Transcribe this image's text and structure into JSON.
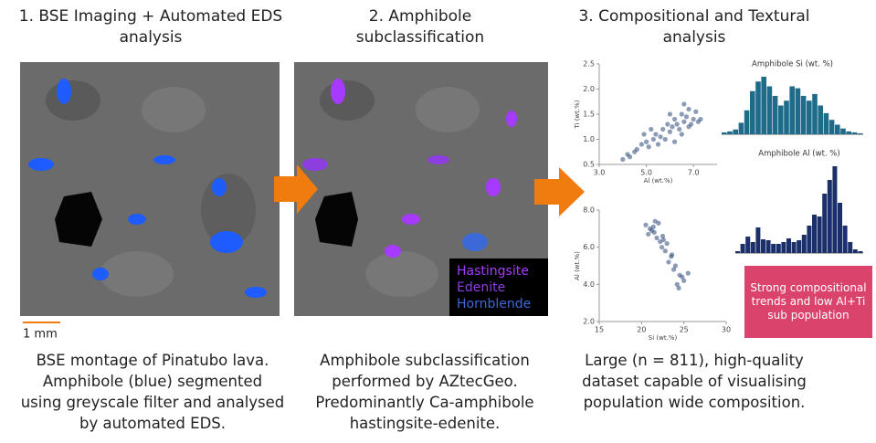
{
  "panels": [
    {
      "heading": "1. BSE Imaging + Automated EDS analysis",
      "caption": "BSE montage of Pinatubo lava. Amphibole (blue) segmented using greyscale filter and analysed by automated EDS."
    },
    {
      "heading": "2. Amphibole subclassification",
      "caption": "Amphibole subclassification performed by AZtecGeo. Predominantly Ca-amphibole hastingsite-edenite."
    },
    {
      "heading": "3. Compositional and Textural analysis",
      "caption": "Large (n = 811), high-quality dataset capable of visualising population wide composition."
    }
  ],
  "scale_bar": "1 mm",
  "legend": [
    {
      "name": "Hastingsite",
      "color": "#a63bff"
    },
    {
      "name": "Edenite",
      "color": "#8c3ee0"
    },
    {
      "name": "Hornblende",
      "color": "#3d68d8"
    }
  ],
  "callout": "Strong compositional trends and low Al+Ti sub population",
  "charts": [
    {
      "type": "scatter",
      "xlabel": "Al (wt.%)",
      "ylabel": "Ti (wt.%)",
      "color": "#2d4a7a",
      "x": [
        4.0,
        4.2,
        4.3,
        4.5,
        4.6,
        4.8,
        5.0,
        5.1,
        5.3,
        5.4,
        5.6,
        5.7,
        5.8,
        5.9,
        6.0,
        6.1,
        6.2,
        6.3,
        6.4,
        6.5,
        6.6,
        6.7,
        6.8,
        6.9,
        7.0,
        7.1,
        6.5,
        6.8,
        6.2,
        7.2,
        5.5,
        4.9,
        6.0,
        6.6,
        7.3,
        5.2
      ],
      "values": [
        0.6,
        0.7,
        0.65,
        0.75,
        0.8,
        0.9,
        0.95,
        0.85,
        1.0,
        1.1,
        1.05,
        1.2,
        1.0,
        1.3,
        1.15,
        1.25,
        1.4,
        1.3,
        1.2,
        1.5,
        1.35,
        1.45,
        1.6,
        1.3,
        1.4,
        1.55,
        1.1,
        1.25,
        0.95,
        1.35,
        0.9,
        1.1,
        1.5,
        1.7,
        1.4,
        1.2
      ],
      "xlim": [
        3,
        8
      ],
      "xticks": [
        {
          "value": 3,
          "label": "3.0"
        },
        {
          "value": 5,
          "label": "5.0"
        },
        {
          "value": 7,
          "label": "7.0"
        }
      ],
      "ylim": [
        0.5,
        2.5
      ],
      "yticks": [
        0.5,
        {
          "value": 1,
          "label": "1.0"
        },
        1.5,
        {
          "value": 2,
          "label": "2.0"
        },
        2.5
      ]
    },
    {
      "type": "scatter",
      "xlabel": "Si (wt.%)",
      "ylabel": "Al (wt.%)",
      "color": "#2d4a7a",
      "x": [
        20.5,
        21,
        21.5,
        22,
        22.5,
        23,
        21.2,
        21.8,
        22.4,
        23.5,
        24,
        24.5,
        25,
        23.8,
        24.2,
        22.8,
        23.2,
        21.6,
        20.8,
        24.8,
        25.5,
        22.2,
        23.6,
        24.4,
        21.4,
        22.6
      ],
      "values": [
        7.2,
        7.0,
        6.8,
        7.3,
        6.6,
        6.2,
        6.9,
        6.5,
        6.0,
        5.5,
        5.0,
        4.5,
        4.2,
        4.8,
        4.0,
        5.8,
        5.2,
        7.4,
        6.7,
        4.4,
        4.6,
        6.3,
        5.6,
        3.8,
        7.1,
        6.4
      ],
      "xlim": [
        15,
        30
      ],
      "xticks": [
        15,
        20,
        25,
        30
      ],
      "ylim": [
        2,
        8
      ],
      "yticks": [
        {
          "value": 2,
          "label": "2.0"
        },
        {
          "value": 4,
          "label": "4.0"
        },
        {
          "value": 6,
          "label": "6.0"
        },
        {
          "value": 8,
          "label": "8.0"
        }
      ]
    },
    {
      "type": "histogram",
      "title": "Amphibole Si (wt. %)",
      "color": "#1f6b8a",
      "values": [
        2,
        3,
        5,
        12,
        25,
        45,
        55,
        60,
        50,
        40,
        30,
        35,
        50,
        48,
        40,
        35,
        42,
        30,
        22,
        15,
        10,
        6,
        3,
        2,
        1
      ]
    },
    {
      "type": "histogram",
      "title": "Amphibole Al (wt. %)",
      "color": "#1b2f6b",
      "values": [
        2,
        10,
        18,
        12,
        28,
        15,
        14,
        10,
        10,
        12,
        16,
        12,
        14,
        20,
        30,
        42,
        40,
        65,
        80,
        95,
        55,
        30,
        12,
        4,
        2
      ]
    }
  ]
}
